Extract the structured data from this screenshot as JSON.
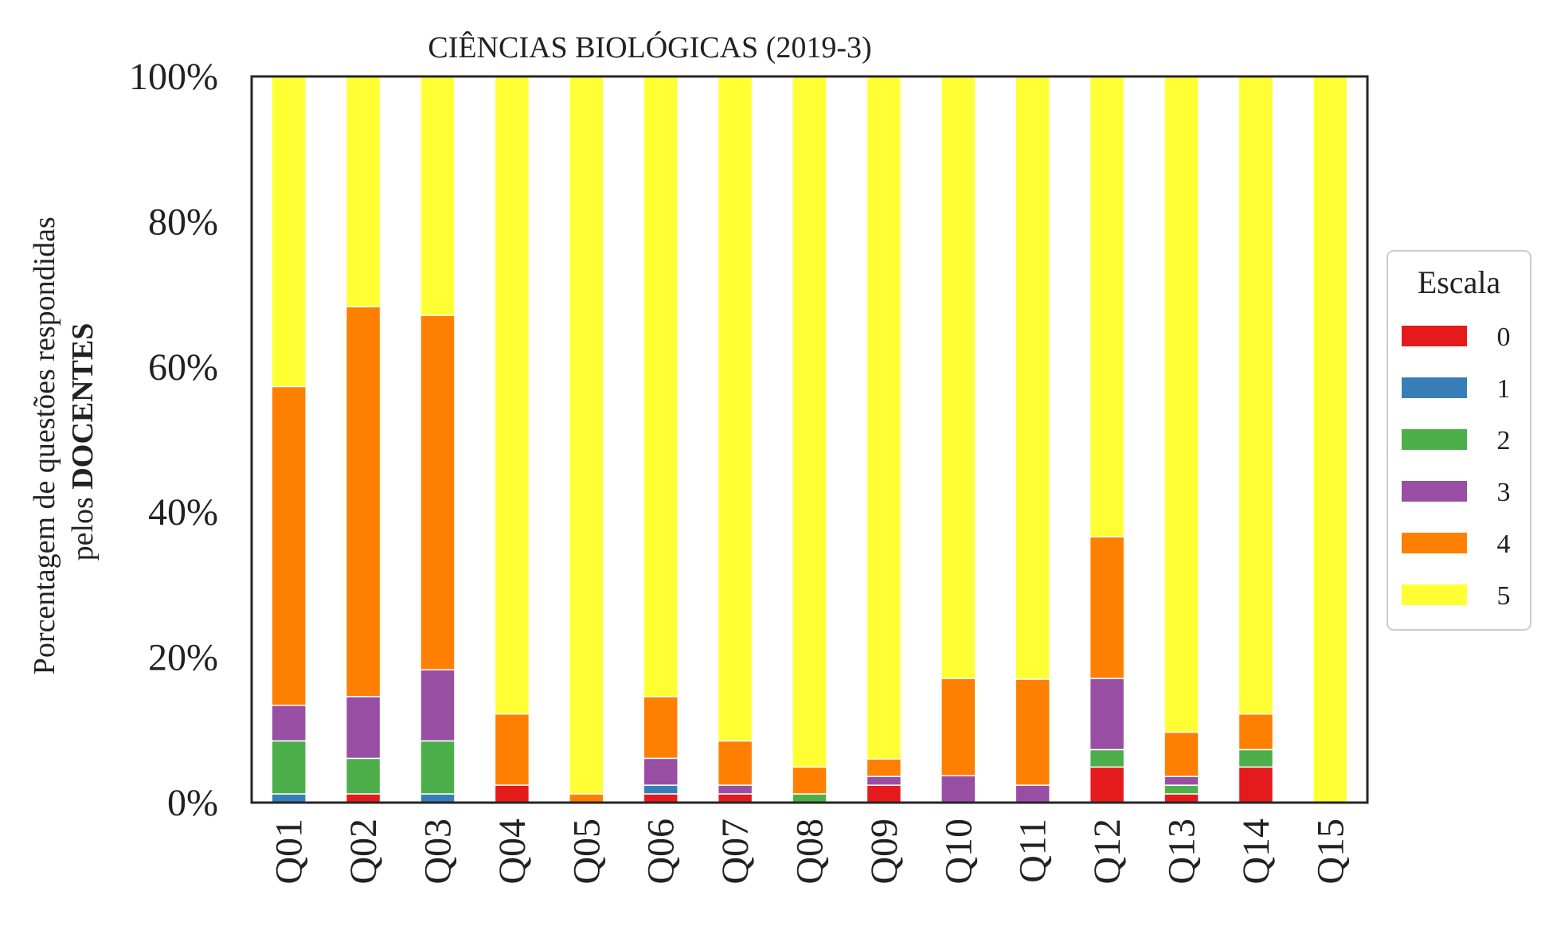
{
  "chart_data": {
    "type": "bar",
    "stacked": true,
    "title": "CIÊNCIAS BIOLÓGICAS (2019-3)",
    "xlabel": "",
    "ylabel_line1": "Porcentagem de questões respondidas",
    "ylabel_line2_prefix": "pelos ",
    "ylabel_line2_bold": "DOCENTES",
    "ylim": [
      0,
      100
    ],
    "yticks": [
      0,
      20,
      40,
      60,
      80,
      100
    ],
    "ytick_labels": [
      "0%",
      "20%",
      "40%",
      "60%",
      "80%",
      "100%"
    ],
    "categories": [
      "Q01",
      "Q02",
      "Q03",
      "Q04",
      "Q05",
      "Q06",
      "Q07",
      "Q08",
      "Q09",
      "Q10",
      "Q11",
      "Q12",
      "Q13",
      "Q14",
      "Q15"
    ],
    "legend": {
      "title": "Escala",
      "placement": "right"
    },
    "grid": false,
    "series": [
      {
        "name": "0",
        "color": "#e41a1c",
        "values": [
          0,
          1.2,
          0,
          2.4,
          0,
          1.2,
          1.2,
          0,
          2.4,
          0,
          0,
          4.9,
          1.2,
          4.9,
          0
        ]
      },
      {
        "name": "1",
        "color": "#377eb8",
        "values": [
          1.2,
          0,
          1.2,
          0,
          0,
          1.2,
          0,
          0,
          0,
          0,
          0,
          0,
          0,
          0,
          0
        ]
      },
      {
        "name": "2",
        "color": "#4daf4a",
        "values": [
          7.3,
          4.9,
          7.3,
          0,
          0,
          0,
          0,
          1.2,
          0,
          0,
          0,
          2.4,
          1.2,
          2.4,
          0
        ]
      },
      {
        "name": "3",
        "color": "#984ea3",
        "values": [
          4.9,
          8.5,
          9.8,
          0,
          0,
          3.7,
          1.2,
          0,
          1.2,
          3.7,
          2.4,
          9.8,
          1.2,
          0,
          0
        ]
      },
      {
        "name": "4",
        "color": "#ff7f00",
        "values": [
          43.9,
          53.7,
          48.8,
          9.8,
          1.2,
          8.5,
          6.1,
          3.7,
          2.4,
          13.4,
          14.6,
          19.5,
          6.1,
          4.9,
          0
        ]
      },
      {
        "name": "5",
        "color": "#ffff33",
        "values": [
          42.7,
          31.7,
          32.9,
          87.8,
          98.8,
          85.4,
          91.5,
          95.1,
          93.9,
          82.9,
          82.9,
          63.4,
          90.2,
          87.8,
          100
        ]
      }
    ]
  }
}
